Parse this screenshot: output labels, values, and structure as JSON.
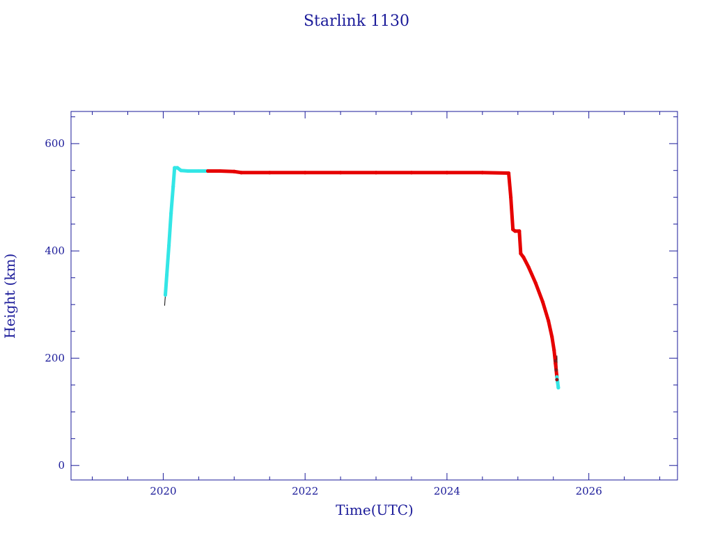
{
  "chart_data": {
    "type": "line",
    "title": "Starlink 1130",
    "xlabel": "Time(UTC)",
    "ylabel": "Height (km)",
    "xlim": [
      2018.7,
      2027.25
    ],
    "ylim": [
      -27,
      660
    ],
    "x_major_ticks": [
      2020,
      2022,
      2024,
      2026
    ],
    "x_tick_labels": [
      "2020",
      "2022",
      "2024",
      "2026"
    ],
    "y_major_ticks": [
      0,
      200,
      400,
      600
    ],
    "y_tick_labels": [
      "0",
      "200",
      "400",
      "600"
    ],
    "grid": false,
    "legend": "none",
    "colors": {
      "axis": "#1a1a99",
      "text": "#1a1a99",
      "series_early": "#33e6e6",
      "series_operational": "#e60000",
      "series_reentry": "#33e6e6",
      "trace": "#000000"
    },
    "series": [
      {
        "color": "#33e6e6",
        "x": [
          2020.03,
          2020.05,
          2020.08,
          2020.11,
          2020.14,
          2020.16,
          2020.2,
          2020.25,
          2020.35,
          2020.5,
          2020.63
        ],
        "y": [
          318,
          355,
          410,
          470,
          520,
          555,
          555,
          550,
          549,
          549,
          549
        ]
      },
      {
        "color": "#e60000",
        "x": [
          2020.63,
          2020.8,
          2021.0,
          2021.1,
          2021.5,
          2022.0,
          2022.5,
          2023.0,
          2023.5,
          2024.0,
          2024.5,
          2024.87,
          2024.9,
          2024.93,
          2024.96,
          2025.02,
          2025.04,
          2025.08,
          2025.15,
          2025.25,
          2025.35,
          2025.43,
          2025.48,
          2025.51,
          2025.53,
          2025.55
        ],
        "y": [
          549,
          549,
          548,
          546,
          546,
          546,
          546,
          546,
          546,
          546,
          546,
          545,
          500,
          440,
          437,
          437,
          395,
          388,
          370,
          340,
          305,
          270,
          240,
          215,
          190,
          165
        ]
      },
      {
        "color": "#33e6e6",
        "x": [
          2025.55,
          2025.56,
          2025.57
        ],
        "y": [
          165,
          155,
          145
        ]
      }
    ]
  }
}
